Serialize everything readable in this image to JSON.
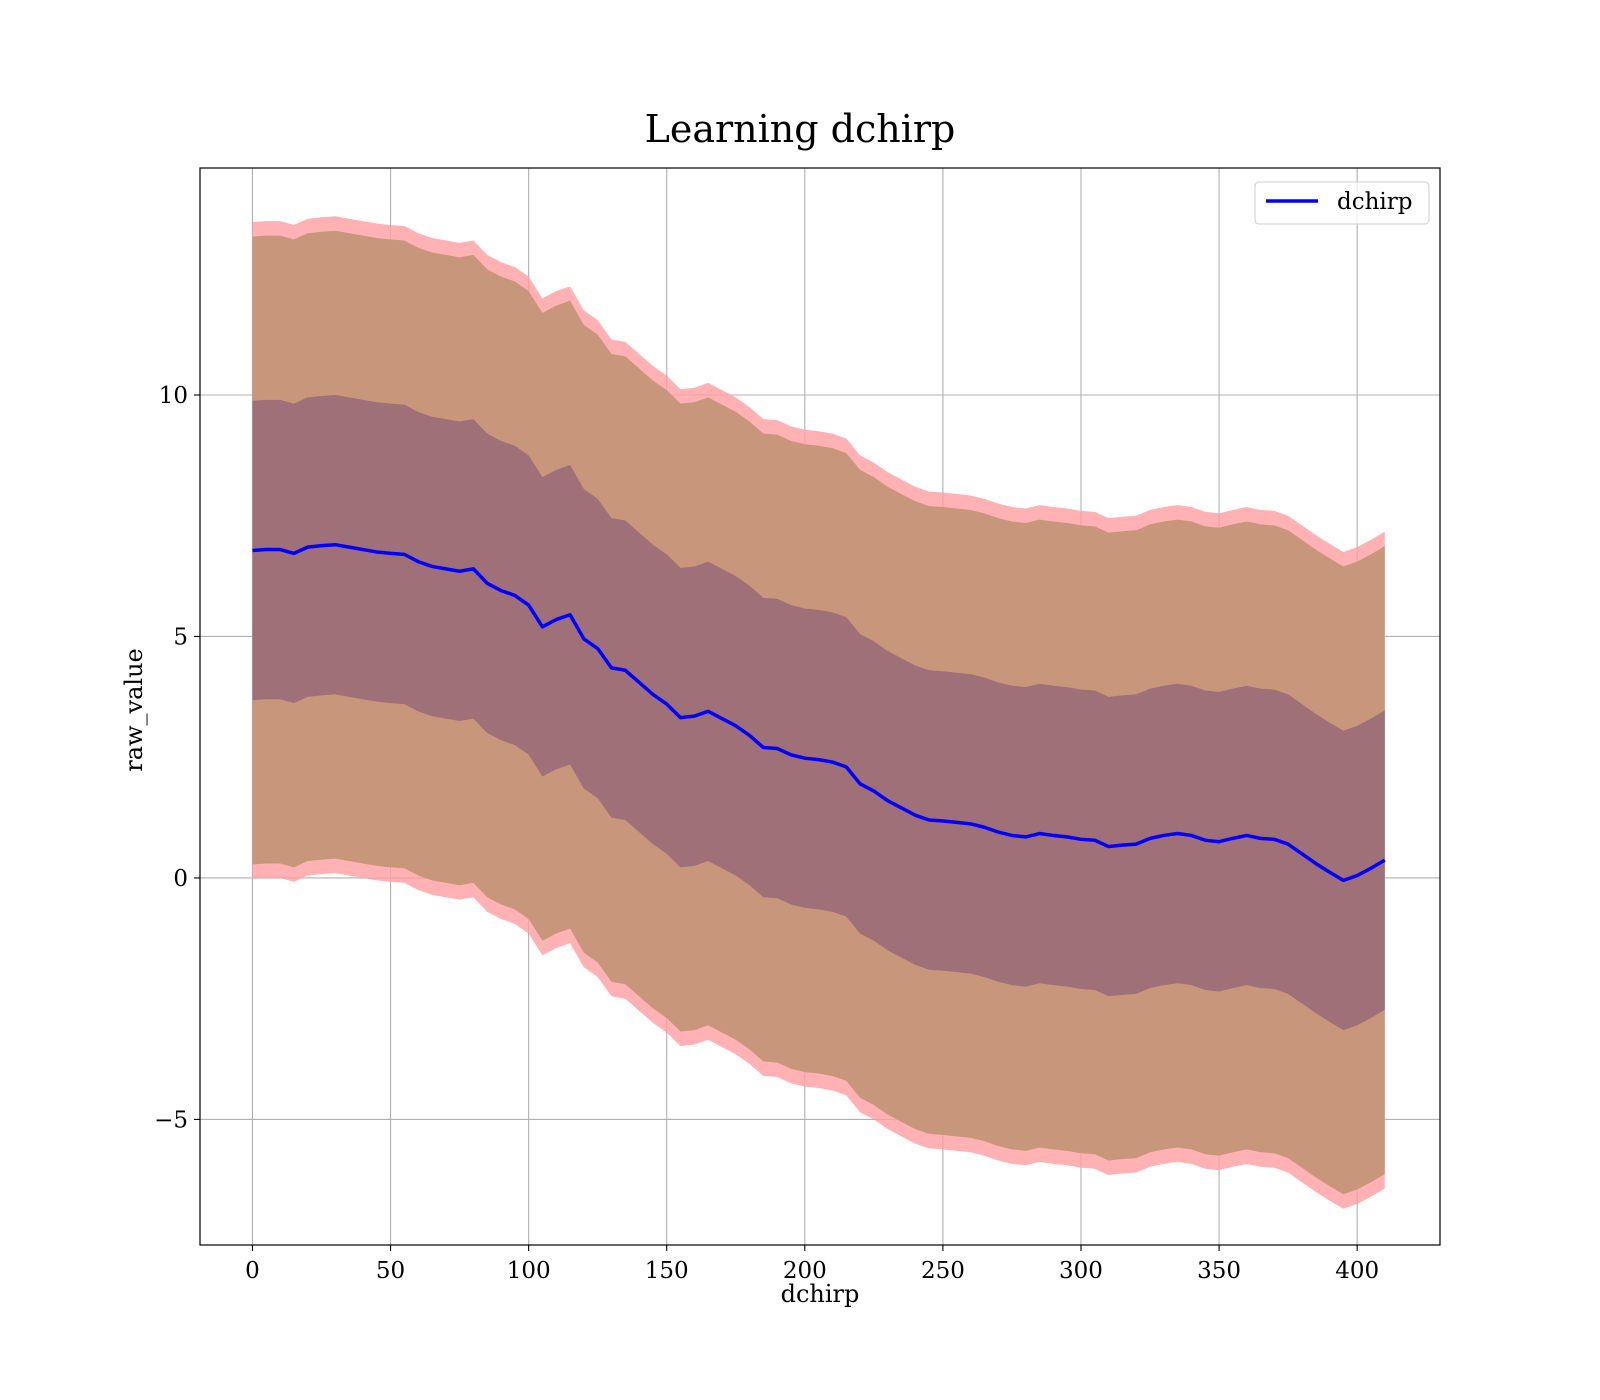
{
  "chart_data": {
    "type": "line",
    "title": "Learning dchirp",
    "xlabel": "dchirp",
    "ylabel": "raw_value",
    "xlim": [
      -19,
      430
    ],
    "ylim": [
      -7.6,
      14.7
    ],
    "x_ticks": [
      0,
      50,
      100,
      150,
      200,
      250,
      300,
      350,
      400
    ],
    "x_tick_labels": [
      "0",
      "50",
      "100",
      "150",
      "200",
      "250",
      "300",
      "350",
      "400"
    ],
    "y_ticks": [
      -5,
      0,
      5,
      10
    ],
    "y_tick_labels": [
      "−5",
      "0",
      "5",
      "10"
    ],
    "grid": true,
    "legend": {
      "position": "top-right",
      "entries": [
        "dchirp"
      ]
    },
    "colors": {
      "line": "#0000ff",
      "outer_band": "#ff9ea0",
      "middle_band": "#c8967a",
      "inner_band": "#a07078",
      "grid": "#b0b0b0"
    },
    "bands": {
      "outer_band": "mean ± 6.8",
      "middle_band": "mean ± 6.5",
      "inner_band": "mean ± 3.1"
    },
    "series": [
      {
        "name": "dchirp",
        "x": [
          0,
          5,
          10,
          15,
          20,
          25,
          30,
          35,
          40,
          45,
          50,
          55,
          60,
          65,
          70,
          75,
          80,
          85,
          90,
          95,
          100,
          105,
          110,
          115,
          120,
          125,
          130,
          135,
          140,
          145,
          150,
          155,
          160,
          165,
          170,
          175,
          180,
          185,
          190,
          195,
          200,
          205,
          210,
          215,
          220,
          225,
          230,
          235,
          240,
          245,
          250,
          255,
          260,
          265,
          270,
          275,
          280,
          285,
          290,
          295,
          300,
          305,
          310,
          315,
          320,
          325,
          330,
          335,
          340,
          345,
          350,
          355,
          360,
          365,
          370,
          375,
          380,
          385,
          390,
          395,
          400,
          405,
          410
        ],
        "values": [
          6.78,
          6.8,
          6.8,
          6.72,
          6.85,
          6.88,
          6.9,
          6.85,
          6.8,
          6.75,
          6.72,
          6.7,
          6.55,
          6.45,
          6.4,
          6.35,
          6.4,
          6.1,
          5.95,
          5.85,
          5.65,
          5.2,
          5.35,
          5.45,
          4.95,
          4.75,
          4.35,
          4.3,
          4.05,
          3.8,
          3.6,
          3.32,
          3.35,
          3.45,
          3.3,
          3.15,
          2.95,
          2.7,
          2.68,
          2.55,
          2.48,
          2.45,
          2.4,
          2.3,
          1.95,
          1.8,
          1.6,
          1.45,
          1.3,
          1.2,
          1.18,
          1.15,
          1.12,
          1.05,
          0.95,
          0.88,
          0.85,
          0.92,
          0.88,
          0.85,
          0.8,
          0.78,
          0.65,
          0.68,
          0.7,
          0.82,
          0.88,
          0.92,
          0.88,
          0.78,
          0.75,
          0.82,
          0.88,
          0.82,
          0.8,
          0.7,
          0.5,
          0.3,
          0.12,
          -0.05,
          0.05,
          0.2,
          0.37
        ]
      }
    ]
  }
}
